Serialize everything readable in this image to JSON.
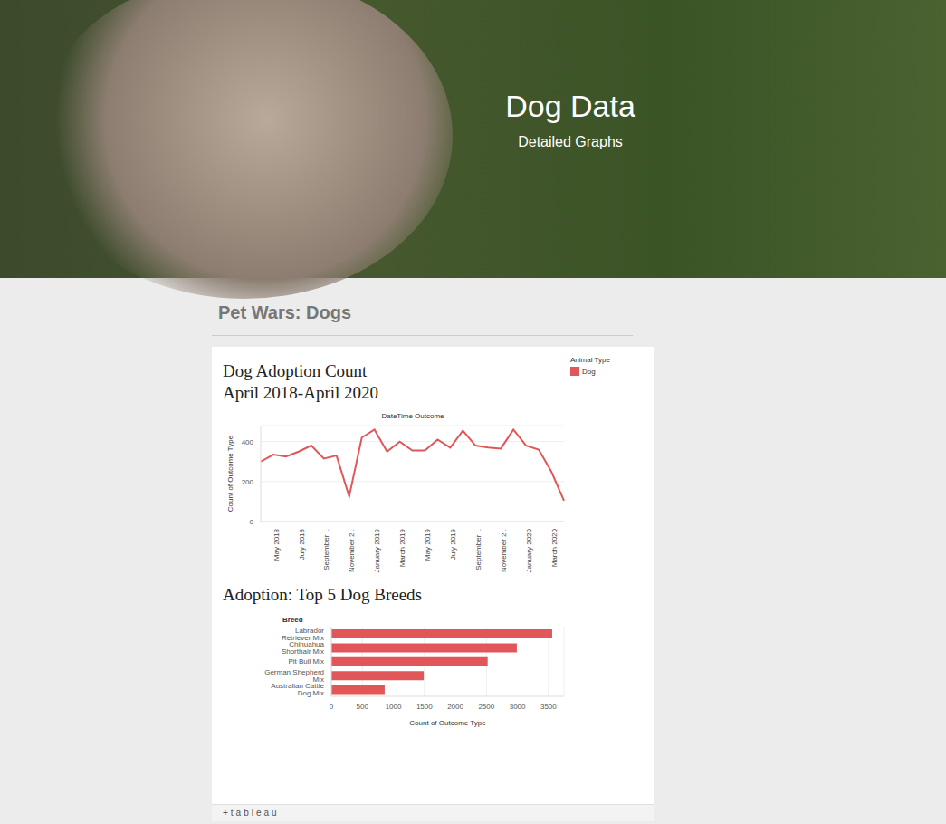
{
  "header": {
    "title": "Dog Data",
    "subtitle": "Detailed Graphs"
  },
  "section_title": "Pet Wars: Dogs",
  "footer": "+tableau",
  "chart_data": [
    {
      "type": "line",
      "title": "Dog Adoption Count",
      "subtitle": "April 2018-April 2020",
      "x_label": "DateTime Outcome",
      "y_label": "Count of Outcome Type",
      "categories": [
        null,
        "May 2018",
        null,
        "July 2018",
        null,
        "September ..",
        null,
        "November 2..",
        null,
        "January 2019",
        null,
        "March 2019",
        null,
        "May 2019",
        null,
        "July 2019",
        null,
        "September ..",
        null,
        "November 2..",
        null,
        "January 2020",
        null,
        "March 2020",
        null
      ],
      "series": [
        {
          "name": "Dog",
          "color": "#e15759",
          "values": [
            300,
            335,
            325,
            350,
            380,
            315,
            330,
            125,
            420,
            460,
            350,
            400,
            355,
            355,
            410,
            370,
            455,
            380,
            370,
            365,
            460,
            380,
            360,
            250,
            105
          ]
        }
      ],
      "legend_title": "Animal Type",
      "legend": "top-right",
      "ylim": [
        0,
        480
      ],
      "yticks": [
        0,
        200,
        400
      ],
      "grid": true
    },
    {
      "type": "bar",
      "orientation": "horizontal",
      "title": "Adoption: Top 5 Dog Breeds",
      "x_label": "Count of Outcome Type",
      "y_label": "Breed",
      "categories": [
        "Labrador Retriever Mix",
        "Chihuahua Shorthair Mix",
        "Pit Bull Mix",
        "German Shepherd Mix",
        "Australian Cattle Dog Mix"
      ],
      "values": [
        3560,
        2990,
        2520,
        1490,
        860
      ],
      "color": "#e15759",
      "xlim": [
        0,
        3750
      ],
      "xticks": [
        0,
        500,
        1000,
        1500,
        2000,
        2500,
        3000,
        3500
      ],
      "grid": true
    }
  ]
}
